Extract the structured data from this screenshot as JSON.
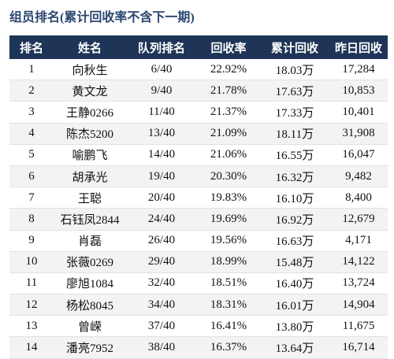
{
  "title": "组员排名(累计回收率不含下一期)",
  "table": {
    "header": [
      "排名",
      "姓名",
      "队列排名",
      "回收率",
      "累计回收",
      "昨日回收"
    ],
    "rows": [
      [
        "1",
        "向秋生",
        "6/40",
        "22.92%",
        "18.03万",
        "17,284"
      ],
      [
        "2",
        "黄文龙",
        "9/40",
        "21.78%",
        "17.63万",
        "10,853"
      ],
      [
        "3",
        "王静0266",
        "11/40",
        "21.37%",
        "17.33万",
        "10,401"
      ],
      [
        "4",
        "陈杰5200",
        "13/40",
        "21.09%",
        "18.11万",
        "31,908"
      ],
      [
        "5",
        "喻鹏飞",
        "14/40",
        "21.06%",
        "16.55万",
        "16,047"
      ],
      [
        "6",
        "胡承光",
        "19/40",
        "20.30%",
        "16.32万",
        "9,482"
      ],
      [
        "7",
        "王聪",
        "20/40",
        "19.83%",
        "16.10万",
        "8,400"
      ],
      [
        "8",
        "石钰凤2844",
        "24/40",
        "19.69%",
        "16.92万",
        "12,679"
      ],
      [
        "9",
        "肖磊",
        "26/40",
        "19.56%",
        "16.63万",
        "4,171"
      ],
      [
        "10",
        "张薇0269",
        "29/40",
        "18.99%",
        "15.48万",
        "14,122"
      ],
      [
        "11",
        "廖旭1084",
        "32/40",
        "18.51%",
        "16.40万",
        "13,724"
      ],
      [
        "12",
        "杨松8045",
        "34/40",
        "18.31%",
        "16.01万",
        "14,904"
      ],
      [
        "13",
        "曾嵘",
        "37/40",
        "16.41%",
        "13.80万",
        "11,675"
      ],
      [
        "14",
        "潘亮7952",
        "38/40",
        "16.37%",
        "13.64万",
        "16,714"
      ]
    ]
  }
}
